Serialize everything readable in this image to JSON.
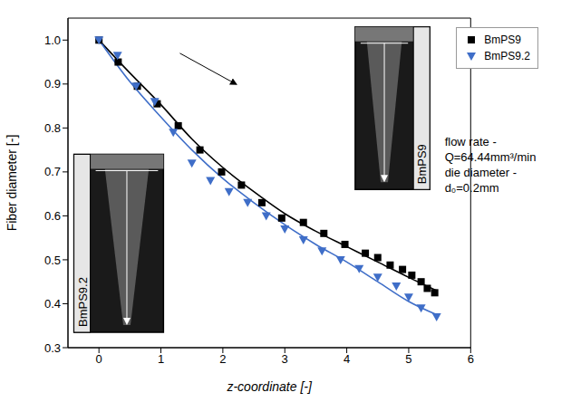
{
  "chart_data": {
    "type": "scatter",
    "x_label": "z-coordinate [-]",
    "y_label": "Fiber diameter [-]",
    "xlim": [
      -0.5,
      6
    ],
    "ylim": [
      0.3,
      1.05
    ],
    "xticks": [
      0,
      1,
      2,
      3,
      4,
      5,
      6
    ],
    "yticks": [
      0.3,
      0.4,
      0.5,
      0.6,
      0.7,
      0.8,
      0.9,
      {
        "value": 1,
        "label": "1.0"
      }
    ],
    "legend": "upper right",
    "annotations": [
      {
        "text": "flow rate -"
      },
      {
        "text": "Q=64.44mm³/min"
      },
      {
        "text": "die diameter -"
      },
      {
        "text": "d₀=0.2mm"
      }
    ],
    "insets": [
      {
        "label": "BmPS9.2"
      },
      {
        "label": "BmPS9"
      }
    ],
    "series": [
      {
        "type": "line",
        "color": "#000000",
        "line_style": "solid",
        "x": [
          0,
          0.5,
          1,
          1.5,
          2,
          2.5,
          3,
          3.5,
          4,
          4.5,
          5,
          5.45
        ],
        "values": [
          1.0,
          0.925,
          0.853,
          0.775,
          0.71,
          0.655,
          0.605,
          0.565,
          0.53,
          0.495,
          0.46,
          0.43
        ]
      },
      {
        "type": "line",
        "color": "#3f6ec8",
        "line_style": "solid",
        "x": [
          0,
          0.5,
          1,
          1.5,
          2,
          2.5,
          3,
          3.5,
          4,
          4.5,
          5,
          5.45
        ],
        "values": [
          1.0,
          0.905,
          0.825,
          0.75,
          0.685,
          0.63,
          0.58,
          0.535,
          0.495,
          0.45,
          0.405,
          0.375
        ]
      },
      {
        "name": "BmPS9",
        "type": "scatter",
        "color": "#000000",
        "marker": "square",
        "x": [
          0,
          0.31,
          0.62,
          0.94,
          1.28,
          1.63,
          1.98,
          2.3,
          2.63,
          2.95,
          3.3,
          3.63,
          3.97,
          4.3,
          4.5,
          4.7,
          4.9,
          5.05,
          5.2,
          5.3,
          5.42
        ],
        "values": [
          1.0,
          0.95,
          0.895,
          0.855,
          0.805,
          0.75,
          0.7,
          0.67,
          0.63,
          0.595,
          0.585,
          0.56,
          0.535,
          0.515,
          0.505,
          0.488,
          0.478,
          0.465,
          0.45,
          0.435,
          0.425
        ]
      },
      {
        "name": "BmPS9.2",
        "type": "scatter",
        "color": "#3f6ec8",
        "marker": "triangle-down",
        "x": [
          0,
          0.3,
          0.6,
          0.9,
          1.2,
          1.5,
          1.8,
          2.1,
          2.4,
          2.7,
          3.0,
          3.3,
          3.6,
          3.9,
          4.2,
          4.5,
          4.8,
          5.0,
          5.2,
          5.45
        ],
        "values": [
          1.0,
          0.965,
          0.895,
          0.86,
          0.79,
          0.72,
          0.68,
          0.655,
          0.63,
          0.6,
          0.57,
          0.545,
          0.52,
          0.5,
          0.48,
          0.46,
          0.44,
          0.415,
          0.39,
          0.37
        ]
      }
    ]
  }
}
